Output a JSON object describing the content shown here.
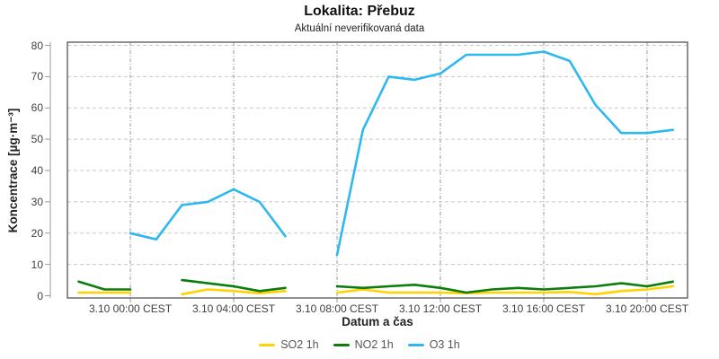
{
  "chart_data": {
    "type": "line",
    "title": "Lokalita: Přebuz",
    "subtitle": "Aktuální neverifikovaná data",
    "xlabel": "Datum a čas",
    "ylabel": "Koncentrace [µg·m⁻³]",
    "ylim": [
      0,
      80
    ],
    "yticks": [
      0,
      10,
      20,
      30,
      40,
      50,
      60,
      70,
      80
    ],
    "grid": "dashed",
    "legend_position": "bottom",
    "x_start": "2.10 22:00 CEST",
    "x_step_hours": 1,
    "x_count": 24,
    "x_tick_labels": [
      "3.10 00:00 CEST",
      "3.10 04:00 CEST",
      "3.10 08:00 CEST",
      "3.10 12:00 CEST",
      "3.10 16:00 CEST",
      "3.10 20:00 CEST"
    ],
    "x_tick_indices": [
      2,
      6,
      10,
      14,
      18,
      22
    ],
    "series": [
      {
        "name": "SO2 1h",
        "color": "#ffd200",
        "values": [
          1,
          1,
          1,
          null,
          0.5,
          2,
          1.5,
          0.8,
          1.5,
          null,
          1,
          2,
          1,
          1,
          1,
          0.8,
          1,
          1,
          1,
          1.2,
          0.5,
          1.5,
          2,
          3
        ]
      },
      {
        "name": "NO2 1h",
        "color": "#0a7d0a",
        "values": [
          4.5,
          2,
          2,
          null,
          5,
          4,
          3,
          1.5,
          2.5,
          null,
          3,
          2.5,
          3,
          3.5,
          2.5,
          1,
          2,
          2.5,
          2,
          2.5,
          3,
          4,
          3,
          4.5
        ]
      },
      {
        "name": "O3 1h",
        "color": "#2eb8f0",
        "values": [
          null,
          null,
          20,
          18,
          29,
          30,
          34,
          30,
          19,
          null,
          13,
          53,
          70,
          69,
          71,
          77,
          77,
          77,
          78,
          75,
          61,
          52,
          52,
          53
        ]
      }
    ],
    "style_colors": {
      "grid_h": "#c8c8c8",
      "grid_v": "#9a9a9a",
      "plot_border": "#555555",
      "axis": "#999999",
      "tick_text": "#3f3f3f"
    }
  }
}
